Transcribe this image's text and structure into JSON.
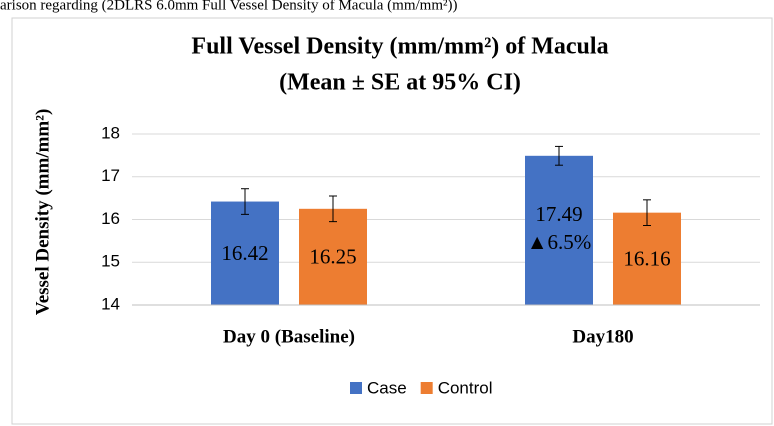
{
  "chart_data": {
    "type": "bar",
    "caption": "arison regarding (2DLRS 6.0mm Full Vessel Density of Macula (mm/mm²))",
    "title": [
      "Full Vessel Density (mm/mm²) of Macula",
      "(Mean ± SE at 95% CI)"
    ],
    "y_label": "Vessel Density (mm/mm²)",
    "categories": [
      "Day 0 (Baseline)",
      "Day180"
    ],
    "series": [
      {
        "name": "Case",
        "color": "#4472c4",
        "values": [
          16.42,
          17.49
        ],
        "errors": [
          0.3,
          0.22
        ]
      },
      {
        "name": "Control",
        "color": "#ed7d31",
        "values": [
          16.25,
          16.16
        ],
        "errors": [
          0.3,
          0.3
        ]
      }
    ],
    "annotation": "▲6.5%",
    "ylim": [
      14,
      18
    ],
    "yticks": [
      14,
      15,
      16,
      17,
      18
    ],
    "grid": true,
    "legend": "bottom"
  }
}
